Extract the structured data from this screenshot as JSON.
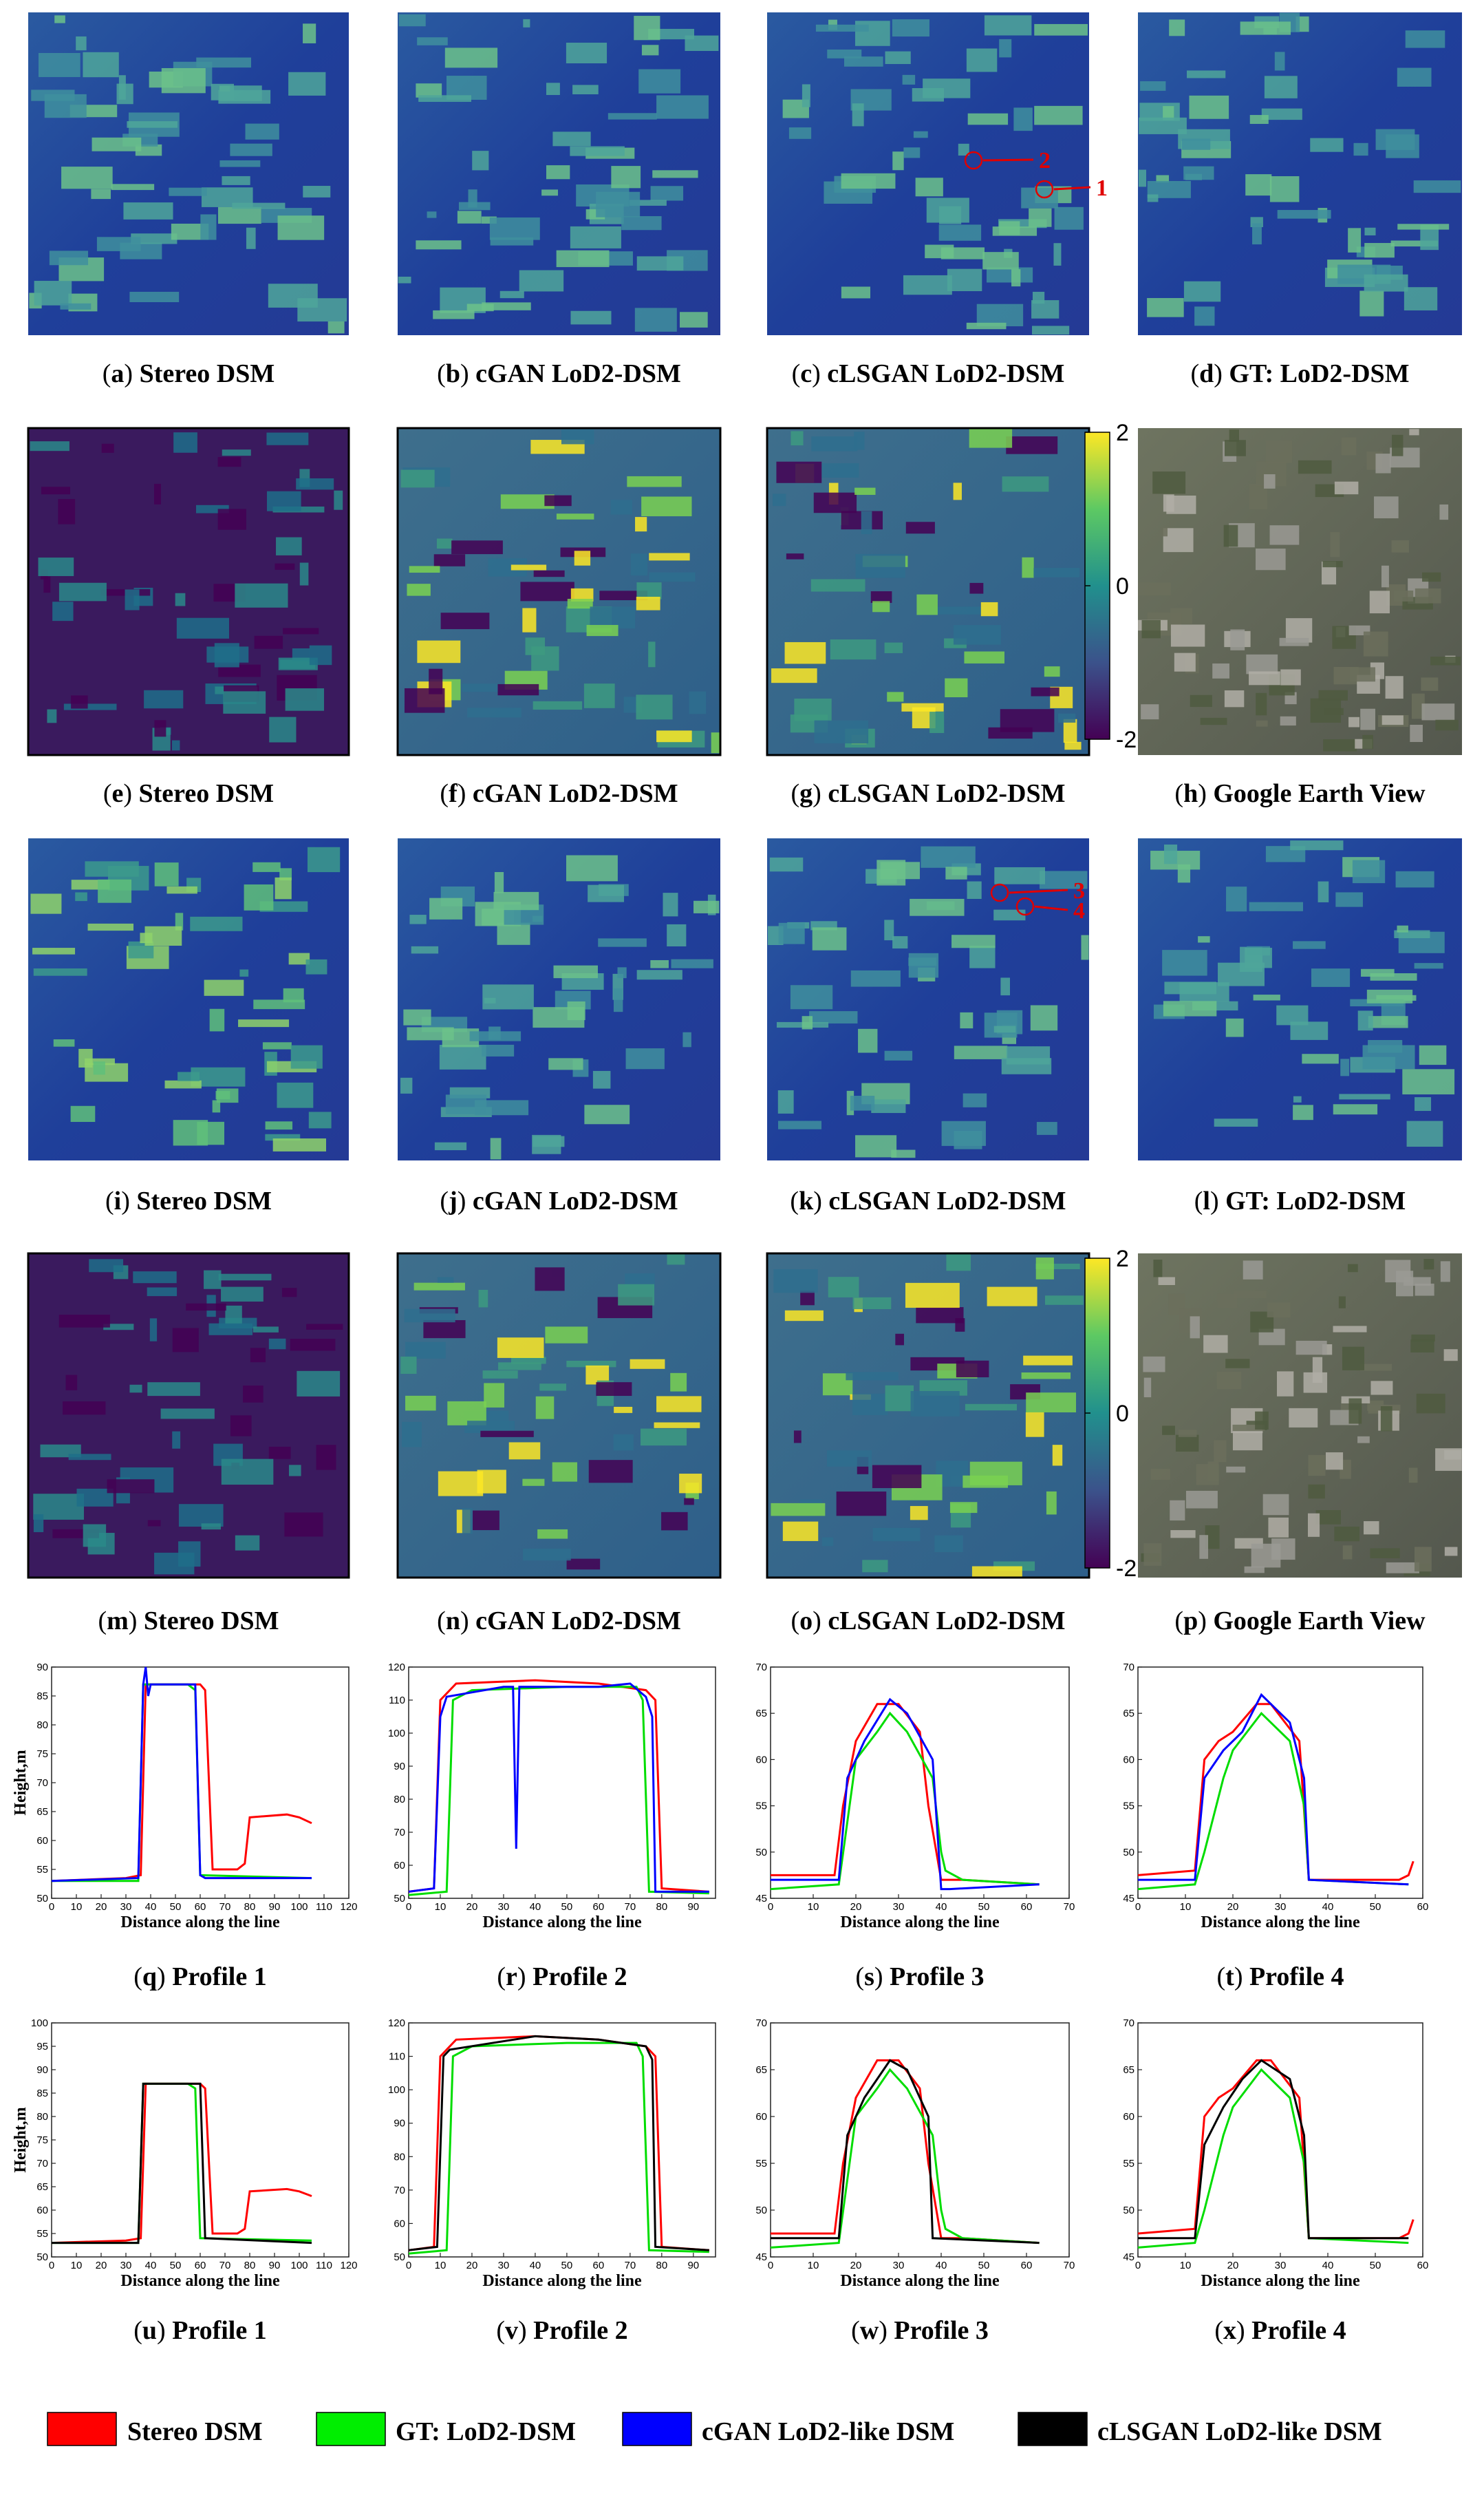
{
  "panels": [
    {
      "tag": "a",
      "label": "Stereo DSM"
    },
    {
      "tag": "b",
      "label": "cGAN LoD2-DSM"
    },
    {
      "tag": "c",
      "label": "cLSGAN LoD2-DSM",
      "markers": [
        "2",
        "1"
      ]
    },
    {
      "tag": "d",
      "label": "GT: LoD2-DSM"
    },
    {
      "tag": "e",
      "label": "Stereo DSM"
    },
    {
      "tag": "f",
      "label": "cGAN LoD2-DSM"
    },
    {
      "tag": "g",
      "label": "cLSGAN LoD2-DSM"
    },
    {
      "tag": "h",
      "label": "Google Earth View"
    },
    {
      "tag": "i",
      "label": "Stereo DSM"
    },
    {
      "tag": "j",
      "label": "cGAN LoD2-DSM"
    },
    {
      "tag": "k",
      "label": "cLSGAN LoD2-DSM",
      "markers": [
        "3",
        "4"
      ]
    },
    {
      "tag": "l",
      "label": "GT: LoD2-DSM"
    },
    {
      "tag": "m",
      "label": "Stereo DSM"
    },
    {
      "tag": "n",
      "label": "cGAN LoD2-DSM"
    },
    {
      "tag": "o",
      "label": "cLSGAN LoD2-DSM"
    },
    {
      "tag": "p",
      "label": "Google Earth View"
    }
  ],
  "colorbar": {
    "lim": [
      -2,
      2
    ],
    "ticks": [
      2,
      0,
      -2
    ]
  },
  "profiles": [
    {
      "tag": "q",
      "label": "Profile 1",
      "ylabel": "Height,m",
      "xlabel": "Distance along the line",
      "xlim": [
        0,
        120
      ],
      "xticks": [
        0,
        10,
        20,
        30,
        40,
        50,
        60,
        70,
        80,
        90,
        100,
        110,
        120
      ],
      "ylim": [
        50,
        90
      ],
      "yticks": [
        50,
        55,
        60,
        65,
        70,
        75,
        80,
        85,
        90
      ],
      "series": [
        {
          "color": "#ff0000",
          "x": [
            0,
            30,
            36,
            38,
            60,
            62,
            65,
            75,
            78,
            80,
            95,
            100,
            105
          ],
          "values": [
            53,
            53.5,
            54,
            87,
            87,
            86,
            55,
            55,
            56,
            64,
            64.5,
            64,
            63
          ]
        },
        {
          "color": "#00dd00",
          "x": [
            0,
            35,
            37,
            55,
            58,
            60,
            105
          ],
          "values": [
            53,
            53,
            87,
            87,
            86,
            54,
            53.5
          ]
        },
        {
          "color": "#0000ff",
          "x": [
            0,
            35,
            37,
            38,
            39,
            40,
            45,
            58,
            60,
            62,
            105
          ],
          "values": [
            53,
            53.5,
            87,
            90,
            85,
            87,
            87,
            87,
            54,
            53.5,
            53.5
          ]
        }
      ]
    },
    {
      "tag": "r",
      "label": "Profile 2",
      "xlabel": "Distance along the line",
      "xlim": [
        0,
        97
      ],
      "xticks": [
        0,
        10,
        20,
        30,
        40,
        50,
        60,
        70,
        80,
        90
      ],
      "ylim": [
        50,
        120
      ],
      "yticks": [
        50,
        60,
        70,
        80,
        90,
        100,
        110,
        120
      ],
      "series": [
        {
          "color": "#ff0000",
          "x": [
            0,
            8,
            10,
            15,
            40,
            60,
            75,
            78,
            80,
            95
          ],
          "values": [
            52,
            53,
            110,
            115,
            116,
            115,
            113,
            110,
            53,
            52
          ]
        },
        {
          "color": "#00dd00",
          "x": [
            0,
            12,
            14,
            20,
            50,
            72,
            74,
            76,
            95
          ],
          "values": [
            51,
            52,
            110,
            113,
            114,
            114,
            110,
            52,
            51.5
          ]
        },
        {
          "color": "#0000ff",
          "x": [
            0,
            8,
            10,
            12,
            30,
            33,
            34,
            35,
            40,
            60,
            70,
            75,
            77,
            78,
            95
          ],
          "values": [
            52,
            53,
            105,
            111,
            114,
            114,
            65,
            114,
            114,
            114,
            115,
            111,
            105,
            52,
            52
          ]
        }
      ]
    },
    {
      "tag": "s",
      "label": "Profile 3",
      "xlabel": "Distance along the line",
      "xlim": [
        0,
        70
      ],
      "xticks": [
        0,
        10,
        20,
        30,
        40,
        50,
        60,
        70
      ],
      "ylim": [
        45,
        70
      ],
      "yticks": [
        45,
        50,
        55,
        60,
        65,
        70
      ],
      "series": [
        {
          "color": "#ff0000",
          "x": [
            0,
            15,
            17,
            20,
            25,
            30,
            35,
            37,
            40,
            45,
            63
          ],
          "values": [
            47.5,
            47.5,
            55,
            62,
            66,
            66,
            63,
            55,
            47,
            47,
            46.5
          ]
        },
        {
          "color": "#00dd00",
          "x": [
            0,
            16,
            20,
            25,
            28,
            32,
            38,
            40,
            41,
            45,
            63
          ],
          "values": [
            46,
            46.5,
            60,
            63,
            65,
            63,
            58,
            50,
            48,
            47,
            46.5
          ]
        },
        {
          "color": "#0000ff",
          "x": [
            0,
            16,
            18,
            22,
            28,
            32,
            38,
            40,
            42,
            63
          ],
          "values": [
            47,
            47,
            58,
            62,
            66.5,
            65,
            60,
            46,
            46,
            46.5
          ]
        }
      ]
    },
    {
      "tag": "t",
      "label": "Profile 4",
      "xlabel": "Distance along the line",
      "xlim": [
        0,
        60
      ],
      "xticks": [
        0,
        10,
        20,
        30,
        40,
        50,
        60
      ],
      "ylim": [
        45,
        70
      ],
      "yticks": [
        45,
        50,
        55,
        60,
        65,
        70
      ],
      "series": [
        {
          "color": "#ff0000",
          "x": [
            0,
            12,
            14,
            17,
            20,
            25,
            28,
            34,
            36,
            55,
            57,
            58
          ],
          "values": [
            47.5,
            48,
            60,
            62,
            63,
            66,
            66,
            62,
            47,
            47,
            47.5,
            49
          ]
        },
        {
          "color": "#00dd00",
          "x": [
            0,
            12,
            14,
            18,
            20,
            26,
            32,
            35,
            36,
            57
          ],
          "values": [
            46,
            46.5,
            50,
            58,
            61,
            65,
            62,
            55,
            47,
            46.5
          ]
        },
        {
          "color": "#0000ff",
          "x": [
            0,
            12,
            14,
            18,
            22,
            26,
            32,
            35,
            36,
            57
          ],
          "values": [
            47,
            47,
            58,
            61,
            63,
            67,
            64,
            58,
            47,
            46.5
          ]
        }
      ]
    },
    {
      "tag": "u",
      "label": "Profile 1",
      "ylabel": "Height,m",
      "xlabel": "Distance along the line",
      "xlim": [
        0,
        120
      ],
      "xticks": [
        0,
        10,
        20,
        30,
        40,
        50,
        60,
        70,
        80,
        90,
        100,
        110,
        120
      ],
      "ylim": [
        50,
        100
      ],
      "yticks": [
        50,
        55,
        60,
        65,
        70,
        75,
        80,
        85,
        90,
        95,
        100
      ],
      "series": [
        {
          "color": "#ff0000",
          "x": [
            0,
            30,
            36,
            38,
            60,
            62,
            65,
            75,
            78,
            80,
            95,
            100,
            105
          ],
          "values": [
            53,
            53.5,
            54,
            87,
            87,
            86,
            55,
            55,
            56,
            64,
            64.5,
            64,
            63
          ]
        },
        {
          "color": "#00dd00",
          "x": [
            0,
            35,
            37,
            55,
            58,
            60,
            105
          ],
          "values": [
            53,
            53,
            87,
            87,
            86,
            54,
            53.5
          ]
        },
        {
          "color": "#000000",
          "x": [
            0,
            35,
            37,
            58,
            60,
            62,
            105
          ],
          "values": [
            53,
            53,
            87,
            87,
            87,
            54,
            53
          ]
        }
      ]
    },
    {
      "tag": "v",
      "label": "Profile 2",
      "xlabel": "Distance along the line",
      "xlim": [
        0,
        97
      ],
      "xticks": [
        0,
        10,
        20,
        30,
        40,
        50,
        60,
        70,
        80,
        90
      ],
      "ylim": [
        50,
        120
      ],
      "yticks": [
        50,
        60,
        70,
        80,
        90,
        100,
        110,
        120
      ],
      "series": [
        {
          "color": "#ff0000",
          "x": [
            0,
            8,
            10,
            15,
            40,
            60,
            75,
            78,
            80,
            95
          ],
          "values": [
            52,
            53,
            110,
            115,
            116,
            115,
            113,
            110,
            53,
            52
          ]
        },
        {
          "color": "#00dd00",
          "x": [
            0,
            12,
            14,
            20,
            50,
            72,
            74,
            76,
            95
          ],
          "values": [
            51,
            52,
            110,
            113,
            114,
            114,
            110,
            52,
            51.5
          ]
        },
        {
          "color": "#000000",
          "x": [
            0,
            9,
            11,
            13,
            40,
            60,
            75,
            77,
            78,
            95
          ],
          "values": [
            52,
            53,
            110,
            112,
            116,
            115,
            113,
            109,
            53,
            52
          ]
        }
      ]
    },
    {
      "tag": "w",
      "label": "Profile 3",
      "xlabel": "Distance along the line",
      "xlim": [
        0,
        70
      ],
      "xticks": [
        0,
        10,
        20,
        30,
        40,
        50,
        60,
        70
      ],
      "ylim": [
        45,
        70
      ],
      "yticks": [
        45,
        50,
        55,
        60,
        65,
        70
      ],
      "series": [
        {
          "color": "#ff0000",
          "x": [
            0,
            15,
            17,
            20,
            25,
            30,
            35,
            37,
            40,
            45,
            63
          ],
          "values": [
            47.5,
            47.5,
            55,
            62,
            66,
            66,
            63,
            55,
            47,
            47,
            46.5
          ]
        },
        {
          "color": "#00dd00",
          "x": [
            0,
            16,
            20,
            25,
            28,
            32,
            38,
            40,
            41,
            45,
            63
          ],
          "values": [
            46,
            46.5,
            60,
            63,
            65,
            63,
            58,
            50,
            48,
            47,
            46.5
          ]
        },
        {
          "color": "#000000",
          "x": [
            0,
            16,
            18,
            22,
            28,
            32,
            37,
            38,
            63
          ],
          "values": [
            47,
            47,
            58,
            62,
            66,
            65,
            60,
            47,
            46.5
          ]
        }
      ]
    },
    {
      "tag": "x",
      "label": "Profile 4",
      "xlabel": "Distance along the line",
      "xlim": [
        0,
        60
      ],
      "xticks": [
        0,
        10,
        20,
        30,
        40,
        50,
        60
      ],
      "ylim": [
        45,
        70
      ],
      "yticks": [
        45,
        50,
        55,
        60,
        65,
        70
      ],
      "series": [
        {
          "color": "#ff0000",
          "x": [
            0,
            12,
            14,
            17,
            20,
            25,
            28,
            34,
            36,
            55,
            57,
            58
          ],
          "values": [
            47.5,
            48,
            60,
            62,
            63,
            66,
            66,
            62,
            47,
            47,
            47.5,
            49
          ]
        },
        {
          "color": "#00dd00",
          "x": [
            0,
            12,
            14,
            18,
            20,
            26,
            32,
            35,
            36,
            57
          ],
          "values": [
            46,
            46.5,
            50,
            58,
            61,
            65,
            62,
            55,
            47,
            46.5
          ]
        },
        {
          "color": "#000000",
          "x": [
            0,
            12,
            14,
            18,
            22,
            26,
            32,
            35,
            36,
            57
          ],
          "values": [
            47,
            47,
            57,
            61,
            64,
            66,
            64,
            58,
            47,
            47
          ]
        }
      ]
    }
  ],
  "legend": [
    {
      "label": "Stereo DSM",
      "color": "#ff0000"
    },
    {
      "label": "GT: LoD2-DSM",
      "color": "#00ee00"
    },
    {
      "label": "cGAN LoD2-like DSM",
      "color": "#0000ff"
    },
    {
      "label": "cLSGAN LoD2-like DSM",
      "color": "#000000"
    }
  ]
}
